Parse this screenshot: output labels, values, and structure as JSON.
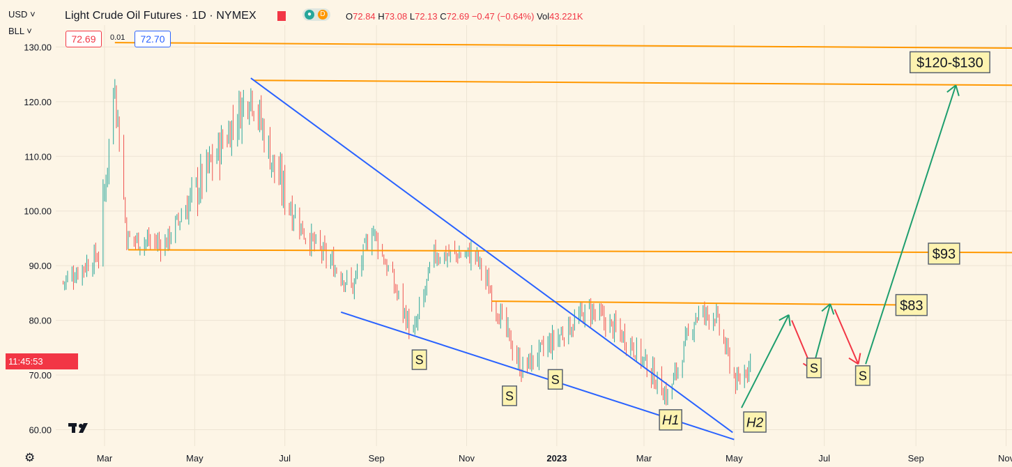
{
  "header": {
    "currency": "USD",
    "unit": "BLL",
    "title": "Light Crude Oil Futures · 1D · NYMEX",
    "badge_d": "D",
    "ohlc": {
      "o_label": "O",
      "o": "72.84",
      "h_label": "H",
      "h": "73.08",
      "l_label": "L",
      "l": "72.13",
      "c_label": "C",
      "c": "72.69",
      "change": "−0.47 (−0.64%)",
      "vol_label": "Vol",
      "vol": "43.221K"
    },
    "bid": "72.69",
    "spread": "0.01",
    "ask": "72.70",
    "countdown": "11:45:53",
    "logo": "TV"
  },
  "colors": {
    "background": "#fdf5e6",
    "up": "#26a69a",
    "down": "#ef5350",
    "resistance": "#ff9800",
    "wedge": "#2962ff",
    "green_arrow": "#1e9e6e",
    "red_arrow": "#f23645",
    "label_fill": "#fdf3b0",
    "label_border": "#58616e"
  },
  "chart_data": {
    "type": "candlestick",
    "title": "Light Crude Oil Futures · 1D · NYMEX",
    "y_axis": {
      "ticks": [
        "130.00",
        "120.00",
        "110.00",
        "100.00",
        "90.00",
        "80.00",
        "70.00",
        "60.00"
      ],
      "range": [
        57,
        134
      ]
    },
    "x_axis": {
      "ticks": [
        "Mar",
        "May",
        "Jul",
        "Sep",
        "Nov",
        "2023",
        "Mar",
        "May",
        "Jul",
        "Sep",
        "Nov"
      ],
      "start": "2022-01-27",
      "end": "2023-11-05"
    },
    "price_path": [
      {
        "date": "2022-02-01",
        "price": 87
      },
      {
        "date": "2022-02-25",
        "price": 92
      },
      {
        "date": "2022-03-08",
        "price": 124
      },
      {
        "date": "2022-03-16",
        "price": 95
      },
      {
        "date": "2022-04-11",
        "price": 94
      },
      {
        "date": "2022-05-15",
        "price": 110
      },
      {
        "date": "2022-06-08",
        "price": 122
      },
      {
        "date": "2022-06-26",
        "price": 106
      },
      {
        "date": "2022-07-14",
        "price": 96
      },
      {
        "date": "2022-08-16",
        "price": 86
      },
      {
        "date": "2022-08-29",
        "price": 97
      },
      {
        "date": "2022-09-26",
        "price": 77
      },
      {
        "date": "2022-10-10",
        "price": 92
      },
      {
        "date": "2022-11-07",
        "price": 92
      },
      {
        "date": "2022-12-08",
        "price": 71
      },
      {
        "date": "2023-01-23",
        "price": 82
      },
      {
        "date": "2023-02-20",
        "price": 76
      },
      {
        "date": "2023-03-17",
        "price": 66
      },
      {
        "date": "2023-04-05",
        "price": 81
      },
      {
        "date": "2023-04-18",
        "price": 81
      },
      {
        "date": "2023-05-03",
        "price": 68
      },
      {
        "date": "2023-05-12",
        "price": 72.7
      }
    ],
    "lines": [
      {
        "kind": "resistance",
        "from": {
          "date": "2022-03-08",
          "price": 130.8
        },
        "to": {
          "date": "2023-11-05",
          "price": 129.8
        }
      },
      {
        "kind": "resistance",
        "from": {
          "date": "2022-06-10",
          "price": 123.9
        },
        "to": {
          "date": "2023-11-05",
          "price": 123.0
        }
      },
      {
        "kind": "resistance",
        "from": {
          "date": "2022-03-17",
          "price": 92.9
        },
        "to": {
          "date": "2023-11-05",
          "price": 92.4
        }
      },
      {
        "kind": "resistance",
        "from": {
          "date": "2022-11-18",
          "price": 83.5
        },
        "to": {
          "date": "2023-08-29",
          "price": 82.8
        }
      },
      {
        "kind": "wedge",
        "from": {
          "date": "2022-06-08",
          "price": 124.3
        },
        "to": {
          "date": "2023-04-30",
          "price": 59.5
        }
      },
      {
        "kind": "wedge",
        "from": {
          "date": "2022-08-08",
          "price": 81.5
        },
        "to": {
          "date": "2023-05-01",
          "price": 58.2
        }
      }
    ],
    "projection": [
      {
        "kind": "up",
        "from": {
          "date": "2023-05-06",
          "price": 64
        },
        "to": {
          "date": "2023-06-07",
          "price": 81
        }
      },
      {
        "kind": "down",
        "from": {
          "date": "2023-06-09",
          "price": 80
        },
        "to": {
          "date": "2023-06-23",
          "price": 71
        }
      },
      {
        "kind": "up",
        "from": {
          "date": "2023-06-23",
          "price": 71
        },
        "to": {
          "date": "2023-07-05",
          "price": 83
        }
      },
      {
        "kind": "down",
        "from": {
          "date": "2023-07-08",
          "price": 82
        },
        "to": {
          "date": "2023-07-24",
          "price": 72
        }
      },
      {
        "kind": "up",
        "from": {
          "date": "2023-07-29",
          "price": 72
        },
        "to": {
          "date": "2023-09-28",
          "price": 123
        }
      }
    ],
    "annotations": [
      {
        "text": "S",
        "date": "2022-09-30",
        "price": 72.8
      },
      {
        "text": "S",
        "date": "2022-11-30",
        "price": 66.2
      },
      {
        "text": "S",
        "date": "2022-12-31",
        "price": 69.2
      },
      {
        "text": "H1",
        "date": "2023-03-19",
        "price": 61.8
      },
      {
        "text": "H2",
        "date": "2023-05-15",
        "price": 61.4
      },
      {
        "text": "S",
        "date": "2023-06-24",
        "price": 71.3
      },
      {
        "text": "S",
        "date": "2023-07-27",
        "price": 69.9
      },
      {
        "text": "$83",
        "date": "2023-08-29",
        "price": 82.8
      },
      {
        "text": "$93",
        "date": "2023-09-20",
        "price": 92.2
      },
      {
        "text": "$120-$130",
        "date": "2023-09-24",
        "price": 127.2
      }
    ],
    "last_price": 72.69
  }
}
